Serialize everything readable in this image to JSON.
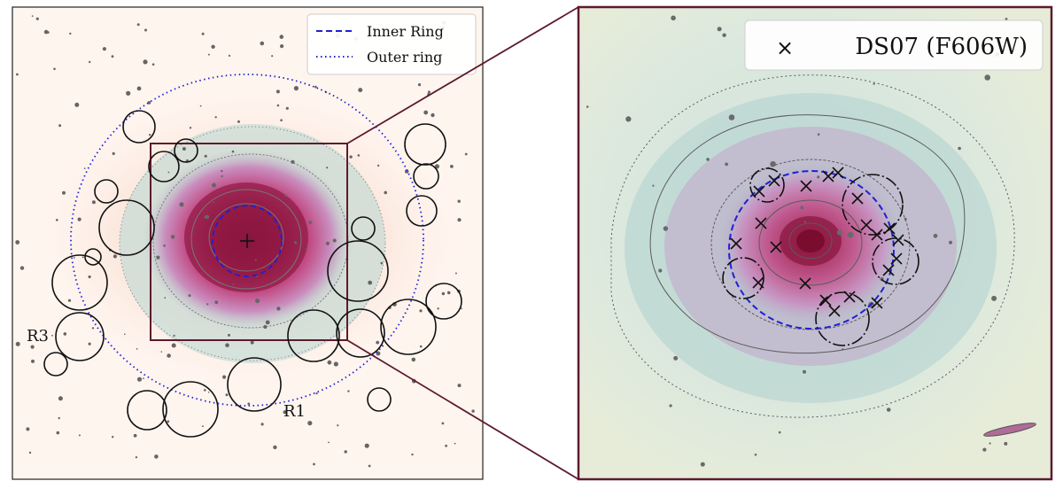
{
  "left_panel": {
    "legend": {
      "items": [
        {
          "label": "Inner Ring",
          "style": "dashed",
          "color": "#1f1fd6"
        },
        {
          "label": "Outer ring",
          "style": "dotted",
          "color": "#1f1fd6"
        }
      ]
    },
    "region_labels": [
      {
        "id": "r3",
        "text": "R3"
      },
      {
        "id": "r1",
        "text": "R1"
      }
    ]
  },
  "right_panel": {
    "legend": {
      "marker": "×",
      "label": "DS07 (F606W)"
    }
  },
  "colors": {
    "frame": "#5e1a2e",
    "ring_blue": "#1f1fd6",
    "core_dark": "#7d0f35",
    "core_mid": "#b43a6b",
    "magenta": "#d07ac0",
    "teal": "#a9cdc9",
    "background_left": "#fff3ea",
    "background_right": "#dfe9d9"
  }
}
